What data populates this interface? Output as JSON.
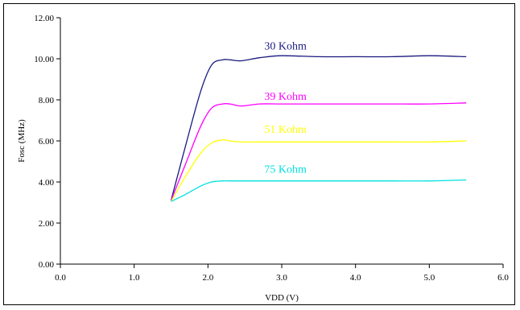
{
  "chart_data": {
    "type": "line",
    "title": "",
    "xlabel": "VDD (V)",
    "ylabel": "Fosc (MHz)",
    "xlim": [
      0,
      6
    ],
    "ylim": [
      0,
      12
    ],
    "x_ticks": [
      "0.0",
      "1.0",
      "2.0",
      "3.0",
      "4.0",
      "5.0",
      "6.0"
    ],
    "y_ticks": [
      "0.00",
      "2.00",
      "4.00",
      "6.00",
      "8.00",
      "10.00",
      "12.00"
    ],
    "grid": false,
    "legend": "none",
    "series": [
      {
        "name": "30 Kohm",
        "color": "#1a1a80",
        "x": [
          1.5,
          1.7,
          1.9,
          2.05,
          2.2,
          2.3,
          2.45,
          2.7,
          3.0,
          3.5,
          4.0,
          4.5,
          5.0,
          5.5
        ],
        "y": [
          3.1,
          5.8,
          8.4,
          9.7,
          9.95,
          9.95,
          9.9,
          10.05,
          10.15,
          10.1,
          10.1,
          10.1,
          10.15,
          10.1
        ],
        "label_at": [
          3.05,
          10.45
        ]
      },
      {
        "name": "39 Kohm",
        "color": "#ff00ff",
        "x": [
          1.5,
          1.7,
          1.9,
          2.05,
          2.2,
          2.3,
          2.45,
          2.7,
          3.0,
          3.5,
          4.0,
          4.5,
          5.0,
          5.5
        ],
        "y": [
          3.1,
          4.9,
          6.7,
          7.6,
          7.8,
          7.8,
          7.7,
          7.8,
          7.8,
          7.8,
          7.8,
          7.8,
          7.8,
          7.85
        ],
        "label_at": [
          3.05,
          8.0
        ]
      },
      {
        "name": "51 Kohm",
        "color": "#ffff00",
        "x": [
          1.5,
          1.7,
          1.9,
          2.05,
          2.2,
          2.3,
          2.45,
          2.7,
          3.0,
          3.5,
          4.0,
          4.5,
          5.0,
          5.5
        ],
        "y": [
          3.05,
          4.3,
          5.4,
          5.9,
          6.05,
          6.0,
          5.95,
          5.95,
          5.95,
          5.95,
          5.95,
          5.95,
          5.95,
          6.0
        ],
        "label_at": [
          3.05,
          6.4
        ]
      },
      {
        "name": "75 Kohm",
        "color": "#00e0e0",
        "x": [
          1.5,
          1.7,
          1.9,
          2.05,
          2.2,
          2.3,
          2.45,
          2.7,
          3.0,
          3.5,
          4.0,
          4.5,
          5.0,
          5.5
        ],
        "y": [
          3.05,
          3.4,
          3.8,
          4.0,
          4.05,
          4.05,
          4.05,
          4.05,
          4.05,
          4.05,
          4.05,
          4.05,
          4.05,
          4.1
        ],
        "label_at": [
          3.05,
          4.45
        ]
      }
    ]
  }
}
